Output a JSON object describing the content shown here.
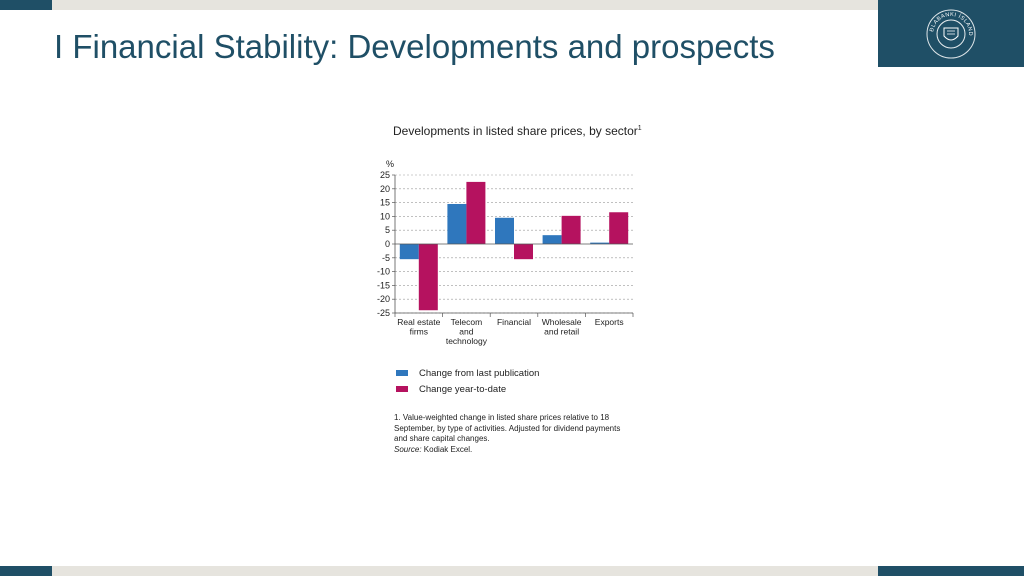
{
  "slide": {
    "title": "I Financial Stability: Developments and prospects",
    "logo_icon": "sedlabanki-islands-seal-icon",
    "logo_text": "SEÐLABANKI ÍSLANDS"
  },
  "colors": {
    "brand": "#1f4f66",
    "series_1": "#2f77bd",
    "series_2": "#b5125f",
    "strip": "#e6e4de"
  },
  "chart_data": {
    "type": "bar",
    "title": "Developments in listed share prices, by sector",
    "title_note_marker": "1",
    "ylabel": "%",
    "ylim": [
      -25,
      25
    ],
    "yticks": [
      "25",
      "20",
      "15",
      "10",
      "5",
      "0",
      "-5",
      "-10",
      "-15",
      "-20",
      "-25"
    ],
    "grid": true,
    "categories": [
      [
        "Real estate",
        "firms"
      ],
      [
        "Telecom",
        "and",
        "technology"
      ],
      [
        "Financial"
      ],
      [
        "Wholesale",
        "and retail"
      ],
      [
        "Exports"
      ]
    ],
    "series": [
      {
        "name": "Change from last publication",
        "values": [
          -5.5,
          14.5,
          9.5,
          3.2,
          0.5
        ]
      },
      {
        "name": "Change year-to-date",
        "values": [
          -24,
          22.5,
          -5.5,
          10.2,
          11.5
        ]
      }
    ],
    "legend_position": "bottom-left",
    "footnote": "1. Value-weighted change in listed share prices relative to 18 September, by type of activities. Adjusted for dividend payments and share capital changes.",
    "source_label": "Source:",
    "source_text": " Kodiak Excel."
  }
}
